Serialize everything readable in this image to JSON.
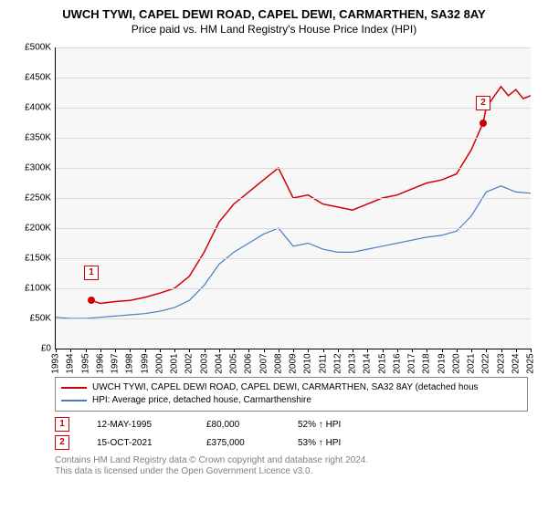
{
  "title": "UWCH TYWI, CAPEL DEWI ROAD, CAPEL DEWI, CARMARTHEN, SA32 8AY",
  "subtitle": "Price paid vs. HM Land Registry's House Price Index (HPI)",
  "chart": {
    "type": "line",
    "background_color": "#f7f7f8",
    "grid_color": "#d9d9d9",
    "ylim": [
      0,
      500000
    ],
    "ytick_step": 50000,
    "ylabels": [
      "£0",
      "£50K",
      "£100K",
      "£150K",
      "£200K",
      "£250K",
      "£300K",
      "£350K",
      "£400K",
      "£450K",
      "£500K"
    ],
    "xmin": 1993,
    "xmax": 2025,
    "xticks": [
      1993,
      1994,
      1995,
      1996,
      1997,
      1998,
      1999,
      2000,
      2001,
      2002,
      2003,
      2004,
      2005,
      2006,
      2007,
      2008,
      2009,
      2010,
      2011,
      2012,
      2013,
      2014,
      2015,
      2016,
      2017,
      2018,
      2019,
      2020,
      2021,
      2022,
      2023,
      2024,
      2025
    ],
    "series": [
      {
        "name": "property",
        "color": "#d00000",
        "width": 1.5,
        "points": [
          [
            1995.4,
            80000
          ],
          [
            1996,
            75000
          ],
          [
            1997,
            78000
          ],
          [
            1998,
            80000
          ],
          [
            1999,
            85000
          ],
          [
            2000,
            92000
          ],
          [
            2001,
            100000
          ],
          [
            2002,
            120000
          ],
          [
            2003,
            160000
          ],
          [
            2004,
            210000
          ],
          [
            2005,
            240000
          ],
          [
            2006,
            260000
          ],
          [
            2007,
            280000
          ],
          [
            2008,
            300000
          ],
          [
            2009,
            250000
          ],
          [
            2010,
            255000
          ],
          [
            2011,
            240000
          ],
          [
            2012,
            235000
          ],
          [
            2013,
            230000
          ],
          [
            2014,
            240000
          ],
          [
            2015,
            250000
          ],
          [
            2016,
            255000
          ],
          [
            2017,
            265000
          ],
          [
            2018,
            275000
          ],
          [
            2019,
            280000
          ],
          [
            2020,
            290000
          ],
          [
            2021,
            330000
          ],
          [
            2021.8,
            375000
          ],
          [
            2022,
            400000
          ],
          [
            2023,
            435000
          ],
          [
            2023.5,
            420000
          ],
          [
            2024,
            430000
          ],
          [
            2024.5,
            415000
          ],
          [
            2025,
            420000
          ]
        ]
      },
      {
        "name": "hpi",
        "color": "#4a7fc1",
        "width": 1.2,
        "points": [
          [
            1993,
            52000
          ],
          [
            1994,
            50000
          ],
          [
            1995,
            50000
          ],
          [
            1996,
            52000
          ],
          [
            1997,
            54000
          ],
          [
            1998,
            56000
          ],
          [
            1999,
            58000
          ],
          [
            2000,
            62000
          ],
          [
            2001,
            68000
          ],
          [
            2002,
            80000
          ],
          [
            2003,
            105000
          ],
          [
            2004,
            140000
          ],
          [
            2005,
            160000
          ],
          [
            2006,
            175000
          ],
          [
            2007,
            190000
          ],
          [
            2008,
            200000
          ],
          [
            2009,
            170000
          ],
          [
            2010,
            175000
          ],
          [
            2011,
            165000
          ],
          [
            2012,
            160000
          ],
          [
            2013,
            160000
          ],
          [
            2014,
            165000
          ],
          [
            2015,
            170000
          ],
          [
            2016,
            175000
          ],
          [
            2017,
            180000
          ],
          [
            2018,
            185000
          ],
          [
            2019,
            188000
          ],
          [
            2020,
            195000
          ],
          [
            2021,
            220000
          ],
          [
            2022,
            260000
          ],
          [
            2023,
            270000
          ],
          [
            2024,
            260000
          ],
          [
            2025,
            258000
          ]
        ]
      }
    ],
    "sale_markers": [
      {
        "num": "1",
        "x": 1995.4,
        "y": 80000,
        "box_offset_y": -30
      },
      {
        "num": "2",
        "x": 2021.8,
        "y": 375000,
        "box_offset_y": -22
      }
    ],
    "marker_dot_color": "#d00000",
    "marker_dot_size": 8
  },
  "legend": [
    {
      "color": "#d00000",
      "label": "UWCH TYWI, CAPEL DEWI ROAD, CAPEL DEWI, CARMARTHEN, SA32 8AY (detached hous"
    },
    {
      "color": "#4a7fc1",
      "label": "HPI: Average price, detached house, Carmarthenshire"
    }
  ],
  "sales": [
    {
      "num": "1",
      "date": "12-MAY-1995",
      "price": "£80,000",
      "pct": "52% ↑ HPI"
    },
    {
      "num": "2",
      "date": "15-OCT-2021",
      "price": "£375,000",
      "pct": "53% ↑ HPI"
    }
  ],
  "footnote1": "Contains HM Land Registry data © Crown copyright and database right 2024.",
  "footnote2": "This data is licensed under the Open Government Licence v3.0."
}
